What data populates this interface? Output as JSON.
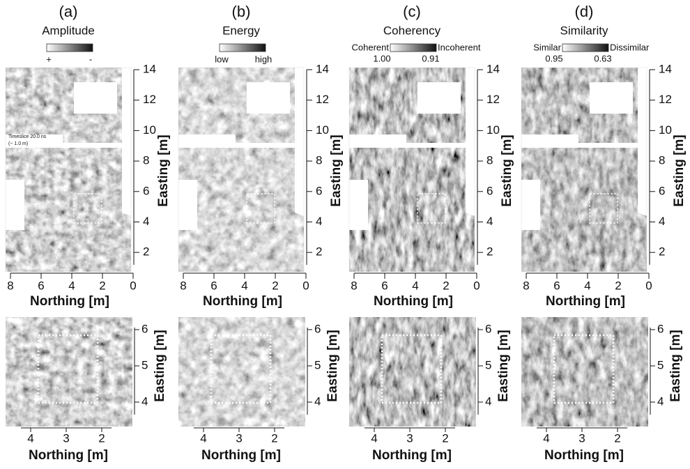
{
  "panels": [
    {
      "label": "(a)",
      "title": "Amplitude",
      "scale_left": null,
      "scale_right": null,
      "scale_low": "+",
      "scale_high": "-",
      "note": [
        "Timeslice 20.0 ns",
        "(~ 1.0 m)"
      ]
    },
    {
      "label": "(b)",
      "title": "Energy",
      "scale_left": null,
      "scale_right": null,
      "scale_low": "low",
      "scale_high": "high",
      "note": null
    },
    {
      "label": "(c)",
      "title": "Coherency",
      "scale_left": "Coherent",
      "scale_right": "Incoherent",
      "scale_low": "1.00",
      "scale_high": "0.91",
      "note": null
    },
    {
      "label": "(d)",
      "title": "Similarity",
      "scale_left": "Similar",
      "scale_right": "Dissimilar",
      "scale_low": "0.95",
      "scale_high": "0.63",
      "note": null
    }
  ],
  "map_axes": {
    "x_label": "Northing [m]",
    "y_label": "Easting [m]",
    "x_ticks": [
      "8",
      "6",
      "4",
      "2",
      "0"
    ],
    "y_ticks": [
      "14",
      "12",
      "10",
      "8",
      "6",
      "4",
      "2"
    ]
  },
  "zoom_axes": {
    "x_label": "Northing [m]",
    "y_label": "Easting [m]",
    "x_ticks": [
      "4",
      "3",
      "2"
    ],
    "y_ticks": [
      "6",
      "5",
      "4"
    ]
  }
}
